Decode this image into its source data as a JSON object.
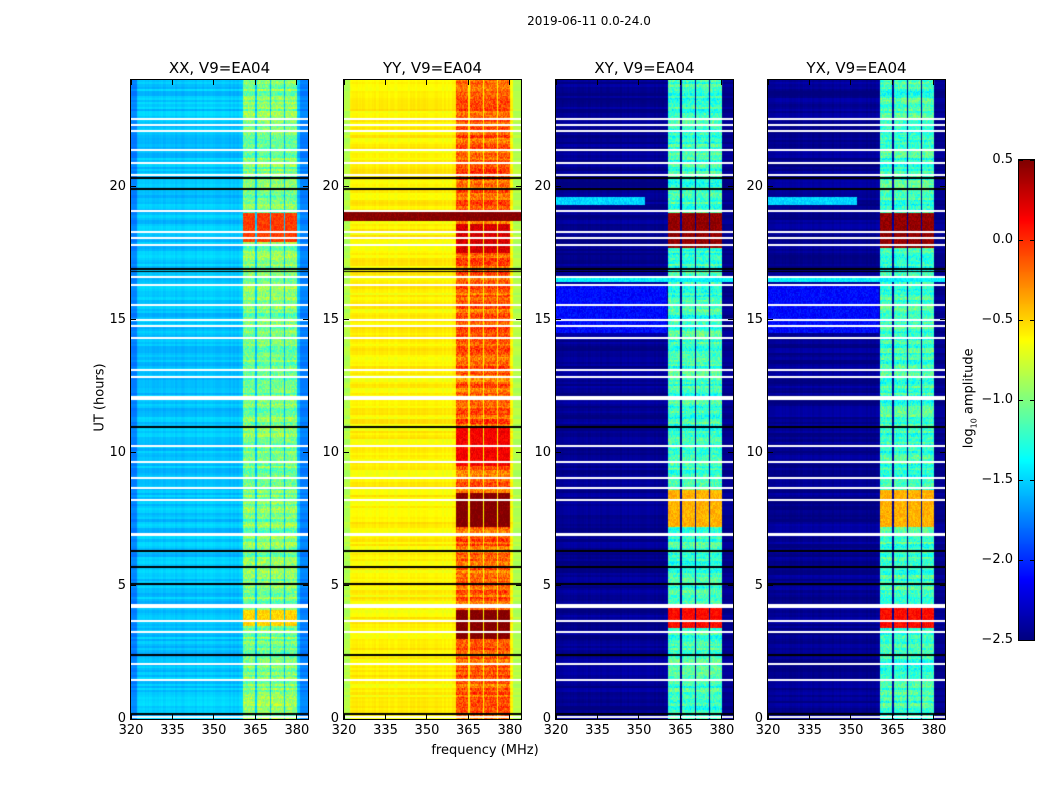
{
  "chart_data": {
    "type": "heatmap",
    "title": "2019-06-11 0.0-24.0",
    "xlabel": "frequency (MHz)",
    "ylabel": "UT (hours)",
    "xlim": [
      320,
      384
    ],
    "ylim": [
      0,
      24
    ],
    "xticks": [
      320,
      335,
      350,
      365,
      380
    ],
    "yticks": [
      0,
      5,
      10,
      15,
      20
    ],
    "colormap": "jet",
    "colorbar": {
      "label_main": "log",
      "label_sub": "10",
      "label_rest": " amplitude",
      "range": [
        -2.5,
        0.5
      ],
      "ticks": [
        "0.5",
        "0.0",
        "−0.5",
        "−1.0",
        "−1.5",
        "−2.0",
        "−2.5"
      ],
      "tick_values": [
        0.5,
        0.0,
        -0.5,
        -1.0,
        -1.5,
        -2.0,
        -2.5
      ]
    },
    "subbands_mhz": [
      [
        360.5,
        364.8
      ],
      [
        365.5,
        370.2
      ],
      [
        370.6,
        375.2
      ],
      [
        375.6,
        380.0
      ]
    ],
    "flagged_hours_white": [
      22.54,
      22.31,
      22.08,
      21.37,
      20.88,
      20.43,
      19.08,
      18.29,
      18.07,
      17.8,
      16.6,
      16.3,
      15.55,
      14.99,
      14.76,
      14.31,
      13.11,
      12.85,
      12.09,
      12.03,
      10.25,
      9.65,
      9.05,
      8.68,
      8.23,
      6.95,
      6.9,
      4.28,
      4.2,
      3.68,
      3.27,
      2.07,
      1.46,
      0.08
    ],
    "black_line_hours": [
      20.32,
      19.9,
      16.9,
      16.8,
      10.97,
      6.3,
      5.7,
      5.07,
      2.4,
      0.19
    ],
    "panels": [
      {
        "title": "XX, V9=EA04",
        "base_level": -1.55,
        "edge_level": -1.75,
        "band_level": -1.0,
        "events": [
          {
            "hours": [
              17.9,
              19.0
            ],
            "level": -0.05,
            "band_only": true
          },
          {
            "hours": [
              3.5,
              4.1
            ],
            "level": -0.5,
            "band_only": true
          }
        ]
      },
      {
        "title": "YY, V9=EA04",
        "base_level": -0.6,
        "edge_level": -0.85,
        "band_level": -0.15,
        "events": [
          {
            "hours": [
              18.7,
              19.1
            ],
            "level": 0.5,
            "band_only": false
          },
          {
            "hours": [
              17.5,
              18.6
            ],
            "level": 0.25,
            "band_only": true
          },
          {
            "hours": [
              9.5,
              11.0
            ],
            "level": 0.15,
            "band_only": true
          },
          {
            "hours": [
              7.2,
              8.5
            ],
            "level": 0.5,
            "band_only": true
          },
          {
            "hours": [
              3.0,
              4.1
            ],
            "level": 0.5,
            "band_only": true
          }
        ]
      },
      {
        "title": "XY, V9=EA04",
        "base_level": -2.45,
        "edge_level": -2.45,
        "band_level": -1.2,
        "events": [
          {
            "hours": [
              17.7,
              19.0
            ],
            "level": 0.45,
            "band_only": true
          },
          {
            "hours": [
              19.3,
              19.6
            ],
            "level": -1.5,
            "freq": [
              320,
              352
            ]
          },
          {
            "hours": [
              16.4,
              16.6
            ],
            "level": -1.4,
            "freq": [
              320,
              384
            ]
          },
          {
            "hours": [
              14.5,
              16.3
            ],
            "level": -2.1,
            "freq": [
              320,
              360
            ]
          },
          {
            "hours": [
              7.2,
              8.6
            ],
            "level": -0.4,
            "band_only": true
          },
          {
            "hours": [
              3.4,
              4.2
            ],
            "level": 0.1,
            "band_only": true
          }
        ]
      },
      {
        "title": "YX, V9=EA04",
        "base_level": -2.45,
        "edge_level": -2.45,
        "band_level": -1.2,
        "events": [
          {
            "hours": [
              17.7,
              19.0
            ],
            "level": 0.45,
            "band_only": true
          },
          {
            "hours": [
              19.3,
              19.6
            ],
            "level": -1.5,
            "freq": [
              320,
              352
            ]
          },
          {
            "hours": [
              16.4,
              16.6
            ],
            "level": -1.4,
            "freq": [
              320,
              384
            ]
          },
          {
            "hours": [
              14.5,
              16.3
            ],
            "level": -2.1,
            "freq": [
              320,
              360
            ]
          },
          {
            "hours": [
              7.2,
              8.6
            ],
            "level": -0.4,
            "band_only": true
          },
          {
            "hours": [
              3.4,
              4.2
            ],
            "level": 0.1,
            "band_only": true
          }
        ]
      }
    ]
  }
}
